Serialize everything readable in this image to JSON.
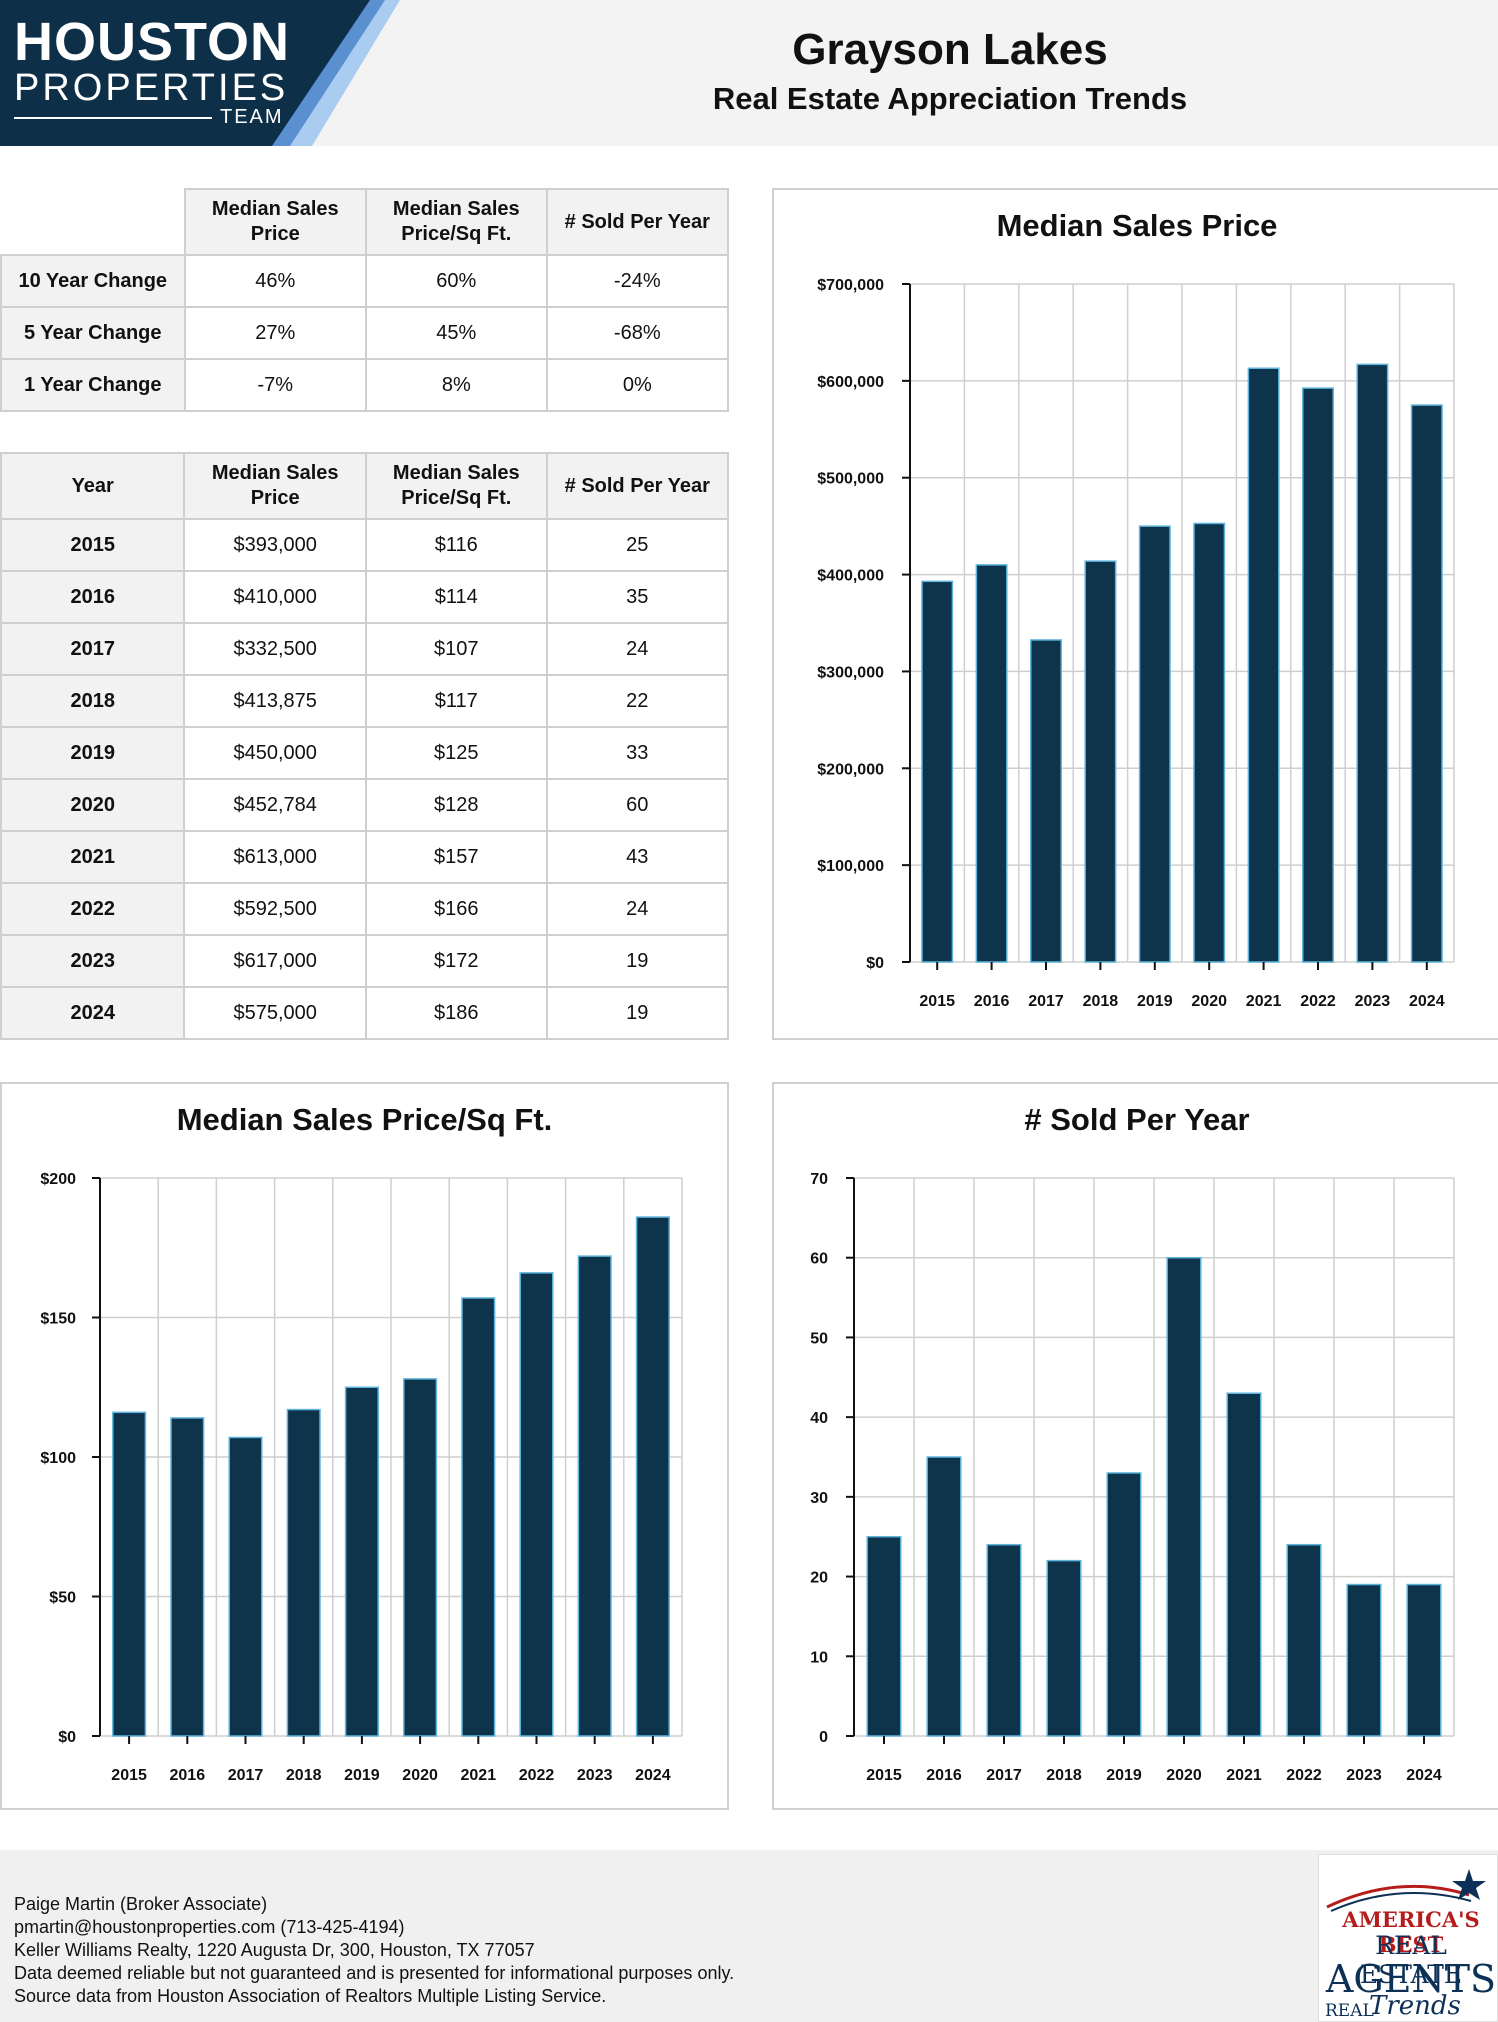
{
  "brand": {
    "line1": "HOUSTON",
    "line2": "PROPERTIES",
    "line3": "TEAM"
  },
  "header": {
    "title": "Grayson Lakes",
    "subtitle": "Real Estate Appreciation Trends"
  },
  "colors": {
    "bar": "#0e344b",
    "bar_edge": "#5fb4dd",
    "logo_navy": "#0e2f48",
    "logo_blue": "#5a8fd0",
    "logo_light": "#a9ccf0"
  },
  "change_table": {
    "headers": [
      "Median Sales Price",
      "Median Sales Price/Sq Ft.",
      "# Sold Per Year"
    ],
    "rows": [
      {
        "label": "10 Year Change",
        "values": [
          "46%",
          "60%",
          "-24%"
        ]
      },
      {
        "label": "5 Year Change",
        "values": [
          "27%",
          "45%",
          "-68%"
        ]
      },
      {
        "label": "1 Year Change",
        "values": [
          "-7%",
          "8%",
          "0%"
        ]
      }
    ]
  },
  "year_table": {
    "headers": [
      "Year",
      "Median Sales Price",
      "Median Sales Price/Sq Ft.",
      "# Sold Per Year"
    ],
    "rows": [
      {
        "year": "2015",
        "price": "$393,000",
        "sqft": "$116",
        "sold": "25"
      },
      {
        "year": "2016",
        "price": "$410,000",
        "sqft": "$114",
        "sold": "35"
      },
      {
        "year": "2017",
        "price": "$332,500",
        "sqft": "$107",
        "sold": "24"
      },
      {
        "year": "2018",
        "price": "$413,875",
        "sqft": "$117",
        "sold": "22"
      },
      {
        "year": "2019",
        "price": "$450,000",
        "sqft": "$125",
        "sold": "33"
      },
      {
        "year": "2020",
        "price": "$452,784",
        "sqft": "$128",
        "sold": "60"
      },
      {
        "year": "2021",
        "price": "$613,000",
        "sqft": "$157",
        "sold": "43"
      },
      {
        "year": "2022",
        "price": "$592,500",
        "sqft": "$166",
        "sold": "24"
      },
      {
        "year": "2023",
        "price": "$617,000",
        "sqft": "$172",
        "sold": "19"
      },
      {
        "year": "2024",
        "price": "$575,000",
        "sqft": "$186",
        "sold": "19"
      }
    ]
  },
  "chart_data": [
    {
      "type": "bar",
      "id": "price",
      "title": "Median Sales Price",
      "categories": [
        "2015",
        "2016",
        "2017",
        "2018",
        "2019",
        "2020",
        "2021",
        "2022",
        "2023",
        "2024"
      ],
      "values": [
        393000,
        410000,
        332500,
        413875,
        450000,
        452784,
        613000,
        592500,
        617000,
        575000
      ],
      "ylim": [
        0,
        700000
      ],
      "yticks": [
        0,
        100000,
        200000,
        300000,
        400000,
        500000,
        600000,
        700000
      ],
      "ytick_labels": [
        "$0",
        "$100,000",
        "$200,000",
        "$300,000",
        "$400,000",
        "$500,000",
        "$600,000",
        "$700,000"
      ],
      "xlabel": "",
      "ylabel": "",
      "grid": true
    },
    {
      "type": "bar",
      "id": "sqft",
      "title": "Median Sales Price/Sq Ft.",
      "categories": [
        "2015",
        "2016",
        "2017",
        "2018",
        "2019",
        "2020",
        "2021",
        "2022",
        "2023",
        "2024"
      ],
      "values": [
        116,
        114,
        107,
        117,
        125,
        128,
        157,
        166,
        172,
        186
      ],
      "ylim": [
        0,
        200
      ],
      "yticks": [
        0,
        50,
        100,
        150,
        200
      ],
      "ytick_labels": [
        "$0",
        "$50",
        "$100",
        "$150",
        "$200"
      ],
      "xlabel": "",
      "ylabel": "",
      "grid": true
    },
    {
      "type": "bar",
      "id": "sold",
      "title": "# Sold Per Year",
      "categories": [
        "2015",
        "2016",
        "2017",
        "2018",
        "2019",
        "2020",
        "2021",
        "2022",
        "2023",
        "2024"
      ],
      "values": [
        25,
        35,
        24,
        22,
        33,
        60,
        43,
        24,
        19,
        19
      ],
      "ylim": [
        0,
        70
      ],
      "yticks": [
        0,
        10,
        20,
        30,
        40,
        50,
        60,
        70
      ],
      "ytick_labels": [
        "0",
        "10",
        "20",
        "30",
        "40",
        "50",
        "60",
        "70"
      ],
      "xlabel": "",
      "ylabel": "",
      "grid": true
    }
  ],
  "footer": {
    "lines": [
      "Paige Martin (Broker Associate)",
      "pmartin@houstonproperties.com (713-425-4194)",
      "Keller Williams Realty, 1220 Augusta Dr, 300, Houston, TX 77057",
      "Data deemed reliable but not guaranteed and is presented for informational purposes only.",
      "Source data from Houston Association of Realtors Multiple Listing Service."
    ],
    "badge": {
      "line1": "AMERICA'S BEST",
      "line2": "REAL ESTATE",
      "line3": "AGENTS",
      "line4": "REAL",
      "script": "Trends"
    }
  }
}
